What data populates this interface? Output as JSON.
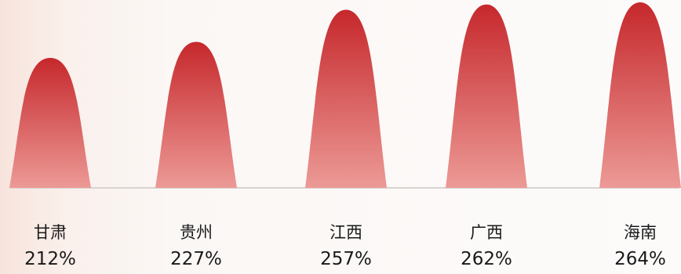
{
  "chart_data": {
    "type": "bar",
    "title": "",
    "xlabel": "",
    "ylabel": "",
    "categories": [
      "甘肃",
      "贵州",
      "江西",
      "广西",
      "海南"
    ],
    "values": [
      212,
      227,
      257,
      262,
      264
    ],
    "value_labels": [
      "212%",
      "227%",
      "257%",
      "262%",
      "264%"
    ],
    "unit": "%",
    "bar_shape": "parabolic-peak",
    "grid": false,
    "legend": "none",
    "colors": {
      "peak_top": "#c6282c",
      "peak_bottom": "#ec9a96",
      "baseline": "#d8d4d2",
      "text": "#1a1a1a"
    }
  }
}
